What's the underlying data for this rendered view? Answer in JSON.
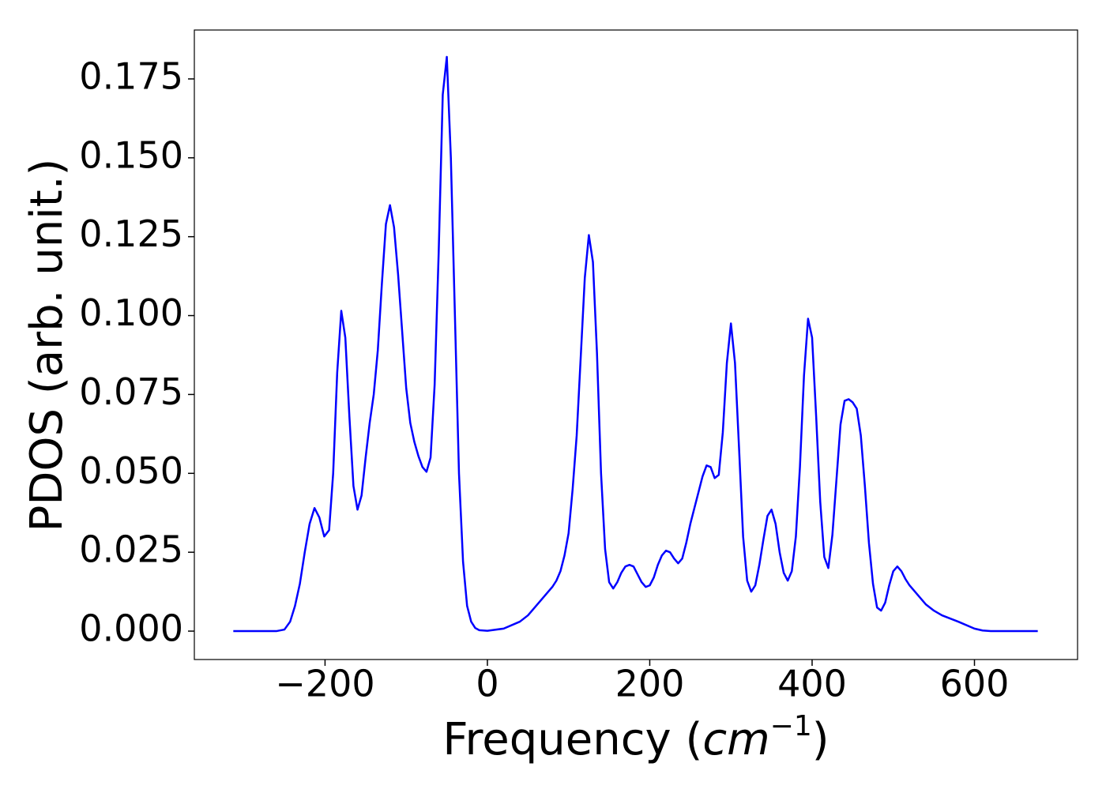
{
  "chart_data": {
    "type": "line",
    "xlabel": [
      "Frequency (",
      "cm",
      "−1",
      ")"
    ],
    "ylabel": "PDOS (arb. unit.)",
    "x": [
      -313,
      -260,
      -250,
      -243,
      -237,
      -231,
      -225,
      -219,
      -213,
      -207,
      -201,
      -195,
      -190,
      -185,
      -180,
      -175,
      -170,
      -165,
      -160,
      -155,
      -150,
      -145,
      -140,
      -135,
      -130,
      -125,
      -120,
      -115,
      -110,
      -105,
      -100,
      -95,
      -90,
      -85,
      -80,
      -75,
      -70,
      -65,
      -60,
      -55,
      -50,
      -45,
      -40,
      -35,
      -30,
      -25,
      -20,
      -15,
      -10,
      0,
      20,
      40,
      50,
      60,
      70,
      80,
      85,
      90,
      95,
      100,
      105,
      110,
      115,
      120,
      125,
      130,
      135,
      140,
      145,
      150,
      155,
      160,
      165,
      170,
      175,
      180,
      185,
      190,
      195,
      200,
      205,
      210,
      215,
      220,
      225,
      230,
      235,
      240,
      245,
      250,
      255,
      260,
      265,
      270,
      275,
      280,
      285,
      290,
      295,
      300,
      305,
      310,
      315,
      320,
      325,
      330,
      335,
      340,
      345,
      350,
      355,
      360,
      365,
      370,
      375,
      380,
      385,
      390,
      395,
      400,
      405,
      410,
      415,
      420,
      425,
      430,
      435,
      440,
      445,
      450,
      455,
      460,
      465,
      470,
      475,
      480,
      485,
      490,
      495,
      500,
      505,
      510,
      515,
      520,
      530,
      540,
      550,
      560,
      580,
      600,
      610,
      620,
      678
    ],
    "series": [
      {
        "color": "#0000ff",
        "values": [
          0,
          0,
          0.0005,
          0.003,
          0.008,
          0.015,
          0.025,
          0.034,
          0.039,
          0.036,
          0.03,
          0.032,
          0.05,
          0.082,
          0.1015,
          0.093,
          0.068,
          0.046,
          0.0385,
          0.043,
          0.055,
          0.066,
          0.075,
          0.089,
          0.11,
          0.129,
          0.135,
          0.128,
          0.113,
          0.095,
          0.077,
          0.066,
          0.06,
          0.0555,
          0.052,
          0.0505,
          0.055,
          0.078,
          0.12,
          0.17,
          0.182,
          0.15,
          0.1,
          0.05,
          0.022,
          0.008,
          0.003,
          0.001,
          0.0003,
          0.0001,
          0.0008,
          0.003,
          0.005,
          0.008,
          0.011,
          0.014,
          0.016,
          0.019,
          0.024,
          0.031,
          0.045,
          0.062,
          0.087,
          0.112,
          0.1255,
          0.117,
          0.088,
          0.05,
          0.026,
          0.0155,
          0.0135,
          0.0155,
          0.0185,
          0.0205,
          0.021,
          0.0205,
          0.018,
          0.0155,
          0.014,
          0.0145,
          0.017,
          0.021,
          0.024,
          0.0255,
          0.025,
          0.023,
          0.0215,
          0.023,
          0.028,
          0.034,
          0.039,
          0.044,
          0.049,
          0.0525,
          0.052,
          0.0485,
          0.0495,
          0.063,
          0.085,
          0.0975,
          0.085,
          0.058,
          0.03,
          0.016,
          0.0125,
          0.0145,
          0.021,
          0.029,
          0.0365,
          0.0385,
          0.034,
          0.025,
          0.0185,
          0.016,
          0.019,
          0.03,
          0.052,
          0.081,
          0.099,
          0.093,
          0.068,
          0.041,
          0.0235,
          0.02,
          0.0305,
          0.048,
          0.0655,
          0.073,
          0.0735,
          0.0725,
          0.0705,
          0.062,
          0.046,
          0.028,
          0.015,
          0.0075,
          0.0065,
          0.009,
          0.0145,
          0.019,
          0.0205,
          0.019,
          0.0165,
          0.0145,
          0.0115,
          0.0085,
          0.0065,
          0.005,
          0.003,
          0.0008,
          0.0002,
          0,
          0
        ]
      }
    ],
    "xlim": [
      -361,
      727
    ],
    "xticks": [
      {
        "value": -200,
        "label": "−200"
      },
      0,
      200,
      400,
      600
    ],
    "ylim": [
      -0.009,
      0.1905
    ],
    "yticks": [
      {
        "value": 0,
        "label": "0.000"
      },
      0.025,
      {
        "value": 0.05,
        "label": "0.050"
      },
      0.075,
      {
        "value": 0.1,
        "label": "0.100"
      },
      0.125,
      {
        "value": 0.15,
        "label": "0.150"
      },
      0.175
    ]
  }
}
